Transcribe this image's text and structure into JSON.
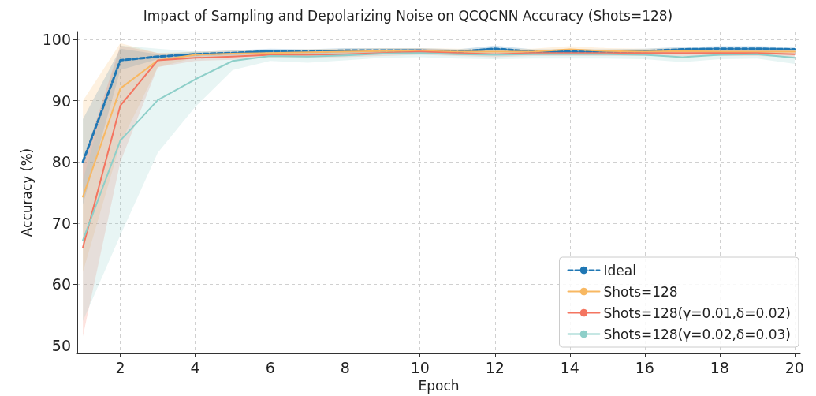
{
  "chart_data": {
    "type": "line",
    "title": "Impact of Sampling and Depolarizing Noise on QCQCNN Accuracy (Shots=128)",
    "xlabel": "Epoch",
    "ylabel": "Accuracy (%)",
    "x": [
      1,
      2,
      3,
      4,
      5,
      6,
      7,
      8,
      9,
      10,
      11,
      12,
      13,
      14,
      15,
      16,
      17,
      18,
      19,
      20
    ],
    "series": [
      {
        "name": "Ideal",
        "color": "#1f77b4",
        "line_style": "dashed",
        "values": [
          80,
          96.6,
          97.2,
          97.6,
          97.8,
          98.1,
          98.0,
          98.2,
          98.2,
          98.2,
          98.0,
          98.5,
          98.0,
          98.0,
          98.0,
          98.1,
          98.4,
          98.5,
          98.5,
          98.4
        ],
        "lower": [
          73,
          95,
          96.8,
          97.2,
          97.4,
          97.7,
          97.6,
          97.8,
          97.8,
          97.8,
          97.6,
          98.0,
          97.6,
          97.6,
          97.6,
          97.7,
          98.0,
          98.1,
          98.1,
          98.0
        ],
        "upper": [
          87,
          98.5,
          97.6,
          98.0,
          98.2,
          98.5,
          98.4,
          98.6,
          98.6,
          98.6,
          98.4,
          99.0,
          98.4,
          98.4,
          98.4,
          98.5,
          98.8,
          98.9,
          98.9,
          98.8
        ]
      },
      {
        "name": "Shots=128",
        "color": "#f8b862",
        "line_style": "solid",
        "values": [
          74.3,
          92,
          96.6,
          97.5,
          97.7,
          97.8,
          97.9,
          98.0,
          98.1,
          98.1,
          98.0,
          98.0,
          98.0,
          98.4,
          98.1,
          98.0,
          98.1,
          98.0,
          98.0,
          98.0
        ],
        "lower": [
          62,
          83,
          95.5,
          97.0,
          97.2,
          97.3,
          97.4,
          97.5,
          97.6,
          97.6,
          97.5,
          97.5,
          97.5,
          97.9,
          97.6,
          97.5,
          97.6,
          97.5,
          97.5,
          97.5
        ],
        "upper": [
          90,
          99.4,
          97.8,
          98.0,
          98.2,
          98.3,
          98.4,
          98.5,
          98.6,
          98.6,
          98.5,
          98.5,
          98.5,
          98.9,
          98.6,
          98.5,
          98.6,
          98.5,
          98.5,
          98.5
        ]
      },
      {
        "name": "Shots=128(γ=0.01,δ=0.02)",
        "color": "#f47560",
        "line_style": "solid",
        "values": [
          66,
          89.2,
          96.6,
          97.0,
          97.2,
          97.5,
          97.5,
          97.6,
          97.8,
          98.0,
          97.8,
          97.6,
          97.8,
          97.8,
          97.8,
          97.8,
          97.8,
          97.8,
          97.8,
          97.6
        ],
        "lower": [
          51.5,
          80,
          95.5,
          96.5,
          96.7,
          97.0,
          97.0,
          97.1,
          97.3,
          97.5,
          97.3,
          97.1,
          97.3,
          97.3,
          97.3,
          97.3,
          97.3,
          97.3,
          97.3,
          97.1
        ],
        "upper": [
          80,
          99,
          97.8,
          97.5,
          97.7,
          98.0,
          98.0,
          98.1,
          98.3,
          98.5,
          98.3,
          98.1,
          98.3,
          98.3,
          98.3,
          98.3,
          98.3,
          98.3,
          98.3,
          98.1
        ]
      },
      {
        "name": "Shots=128(γ=0.02,δ=0.03)",
        "color": "#8ecfc9",
        "line_style": "solid",
        "values": [
          67.2,
          83.5,
          90.1,
          93.5,
          96.5,
          97.3,
          97.2,
          97.4,
          97.7,
          97.8,
          97.6,
          97.5,
          97.6,
          97.6,
          97.6,
          97.5,
          97.1,
          97.5,
          97.6,
          97.0
        ],
        "lower": [
          54,
          68,
          81.5,
          89,
          95,
          96.5,
          96.2,
          96.6,
          97.0,
          97.1,
          96.9,
          96.8,
          96.9,
          96.9,
          96.9,
          96.8,
          96.3,
          96.8,
          96.9,
          96.0
        ],
        "upper": [
          77,
          99,
          98.5,
          98,
          97.8,
          98.0,
          98.1,
          98.2,
          98.4,
          98.5,
          98.3,
          98.2,
          98.3,
          98.3,
          98.3,
          98.2,
          97.8,
          98.2,
          98.3,
          97.8
        ]
      }
    ],
    "xlim": [
      0.85,
      20.15
    ],
    "xticks": [
      2,
      4,
      6,
      8,
      10,
      12,
      14,
      16,
      18,
      20
    ],
    "ylim": [
      48.7,
      101.3
    ],
    "yticks": [
      50,
      60,
      70,
      80,
      90,
      100
    ],
    "grid": true,
    "legend": "bottom right",
    "marker": "none"
  }
}
